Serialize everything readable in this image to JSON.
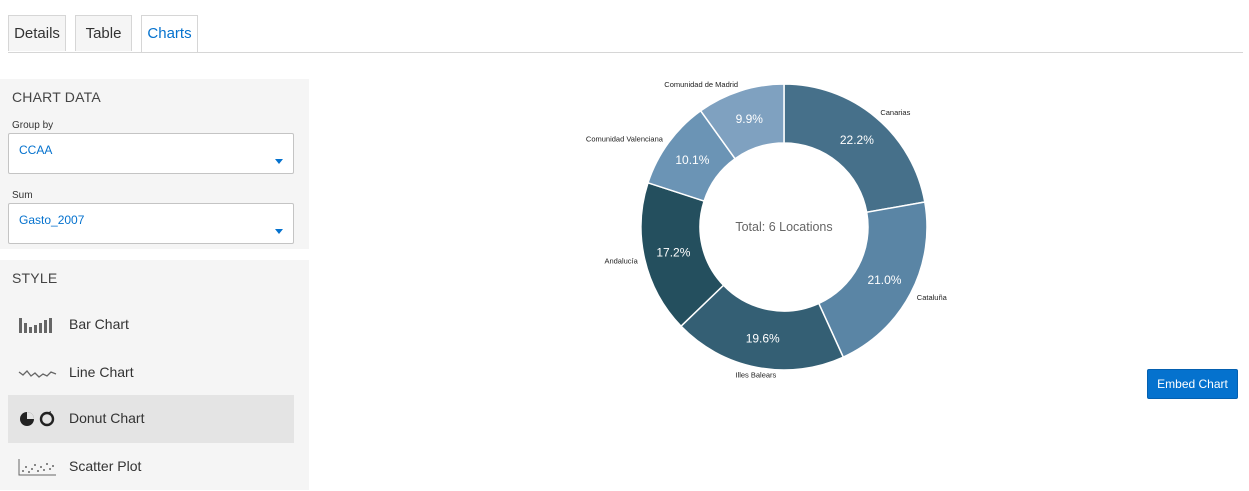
{
  "tabs": [
    {
      "label": "Details"
    },
    {
      "label": "Table"
    },
    {
      "label": "Charts"
    }
  ],
  "active_tab": "Charts",
  "chart_data_panel": {
    "title": "CHART DATA",
    "group_by": {
      "label": "Group by",
      "value": "CCAA"
    },
    "sum": {
      "label": "Sum",
      "value": "Gasto_2007"
    }
  },
  "style_panel": {
    "title": "STYLE",
    "options": [
      {
        "label": "Bar Chart",
        "icon": "bar-chart-icon"
      },
      {
        "label": "Line Chart",
        "icon": "line-chart-icon"
      },
      {
        "label": "Donut Chart",
        "icon": "donut-chart-icon"
      },
      {
        "label": "Scatter Plot",
        "icon": "scatter-plot-icon"
      }
    ],
    "selected": "Donut Chart"
  },
  "embed_button": {
    "label": "Embed Chart"
  },
  "colors": {
    "accent": "#0572ce"
  },
  "chart_data": {
    "type": "donut",
    "center_label": "Total: 6 Locations",
    "slices": [
      {
        "name": "Canarias",
        "pct": 22.2,
        "label": "22.2%",
        "color": "#46708a"
      },
      {
        "name": "Cataluña",
        "pct": 21.0,
        "label": "21.0%",
        "color": "#5a85a5"
      },
      {
        "name": "Illes Balears",
        "pct": 19.6,
        "label": "19.6%",
        "color": "#345f74"
      },
      {
        "name": "Andalucía",
        "pct": 17.2,
        "label": "17.2%",
        "color": "#244f5e"
      },
      {
        "name": "Comunidad Valenciana",
        "pct": 10.1,
        "label": "10.1%",
        "color": "#6b94b5"
      },
      {
        "name": "Comunidad de Madrid",
        "pct": 9.9,
        "label": "9.9%",
        "color": "#7fa1c0"
      }
    ]
  }
}
